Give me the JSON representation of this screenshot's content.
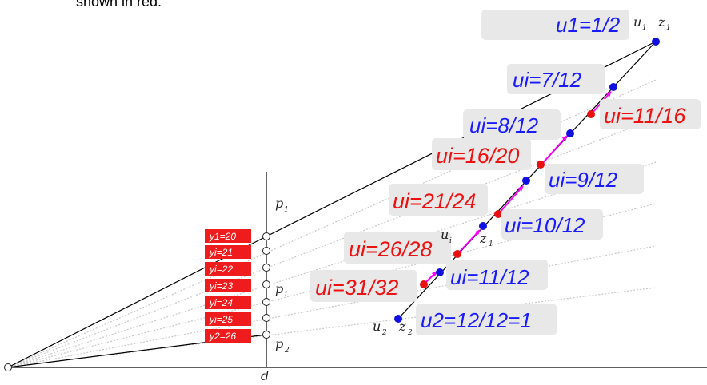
{
  "top_note": "shown in red.",
  "axis_labels": {
    "d": "d",
    "p1": "p",
    "p1_sub": "1",
    "pi": "p",
    "pi_sub": "i",
    "p2": "p",
    "p2_sub": "2",
    "u1": "u",
    "u1_sub": "1",
    "z1_top": "z",
    "z1_top_sub": "1",
    "ui_mid": "u",
    "ui_mid_sub": "i",
    "z1_mid": "z",
    "z1_mid_sub": "1",
    "u2": "u",
    "u2_sub": "2",
    "z2": "z",
    "z2_sub": "2"
  },
  "y_labels": [
    "y1=20",
    "yi=21",
    "yi=22",
    "yi=23",
    "yi=24",
    "yi=25",
    "y2=26"
  ],
  "blue_labels": [
    "u1=1/2",
    "ui=7/12",
    "ui=8/12",
    "ui=9/12",
    "ui=10/12",
    "ui=11/12",
    "u2=12/12=1"
  ],
  "red_labels": [
    "ui=11/16",
    "ui=16/20",
    "ui=21/24",
    "ui=26/28",
    "ui=31/32"
  ],
  "colors": {
    "blue_text": "#1a1aff",
    "red_text": "#ee1111",
    "blue_point": "#1010e0",
    "red_point": "#e81010",
    "arrow": "#ff00ff",
    "label_box": "#e8e8e8",
    "y_label_box": "#ee1c1c"
  }
}
